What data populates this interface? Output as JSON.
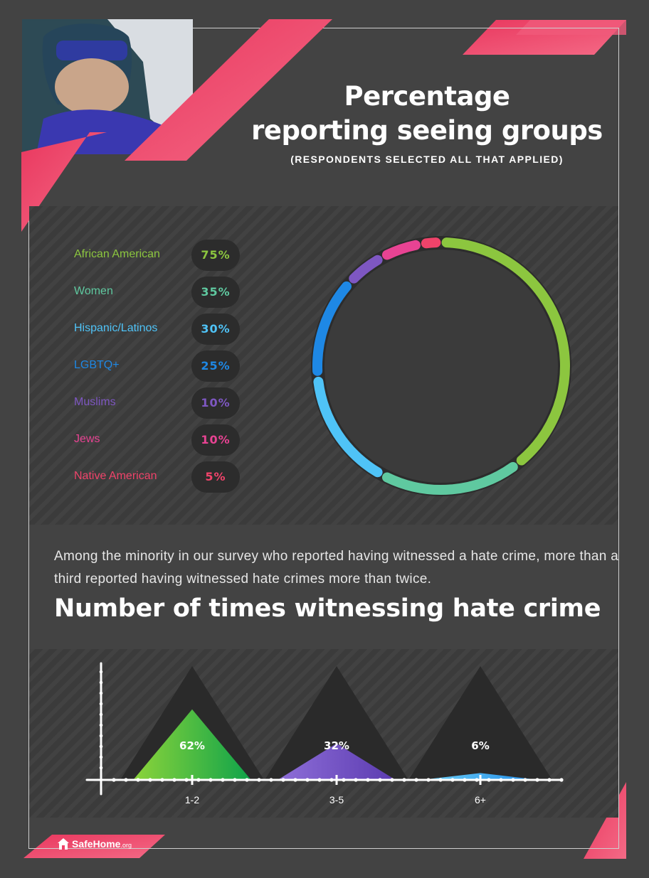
{
  "header": {
    "title_line1": "Percentage",
    "title_line2": "reporting seeing groups",
    "subtitle": "(RESPONDENTS SELECTED ALL THAT APPLIED)"
  },
  "intro_text": "Among the minority in our survey who reported having witnessed a hate crime, more than a third reported having witnessed hate crimes more than twice.",
  "section2_title": "Number of times witnessing hate crime",
  "brand": {
    "name": "SafeHome",
    "suffix": ".org",
    "logo_icon": "house-icon"
  },
  "colors": {
    "background": "#434343",
    "accent": "#f0436a"
  },
  "chart_data": [
    {
      "type": "pie",
      "chart_style": "donut",
      "title": "Percentage reporting seeing groups",
      "subtitle": "(RESPONDENTS SELECTED ALL THAT APPLIED)",
      "categories": [
        "African American",
        "Women",
        "Hispanic/Latinos",
        "LGBTQ+",
        "Muslims",
        "Jews",
        "Native American"
      ],
      "values": [
        75,
        35,
        30,
        25,
        10,
        10,
        5
      ],
      "labels": [
        "75%",
        "35%",
        "30%",
        "25%",
        "10%",
        "10%",
        "5%"
      ],
      "colors": [
        "#8cc63f",
        "#5fc9a0",
        "#4fc3f7",
        "#1e88e5",
        "#7e57c2",
        "#e84393",
        "#f0436a"
      ],
      "legend_position": "left"
    },
    {
      "type": "area",
      "chart_style": "triangles",
      "title": "Number of times witnessing hate crime",
      "categories": [
        "1-2",
        "3-5",
        "6+"
      ],
      "values": [
        62,
        32,
        6
      ],
      "labels": [
        "62%",
        "32%",
        "6%"
      ],
      "colors": [
        "#7ed321",
        "#7e57c2",
        "#4fc3f7"
      ],
      "ylim": [
        0,
        100
      ]
    }
  ]
}
